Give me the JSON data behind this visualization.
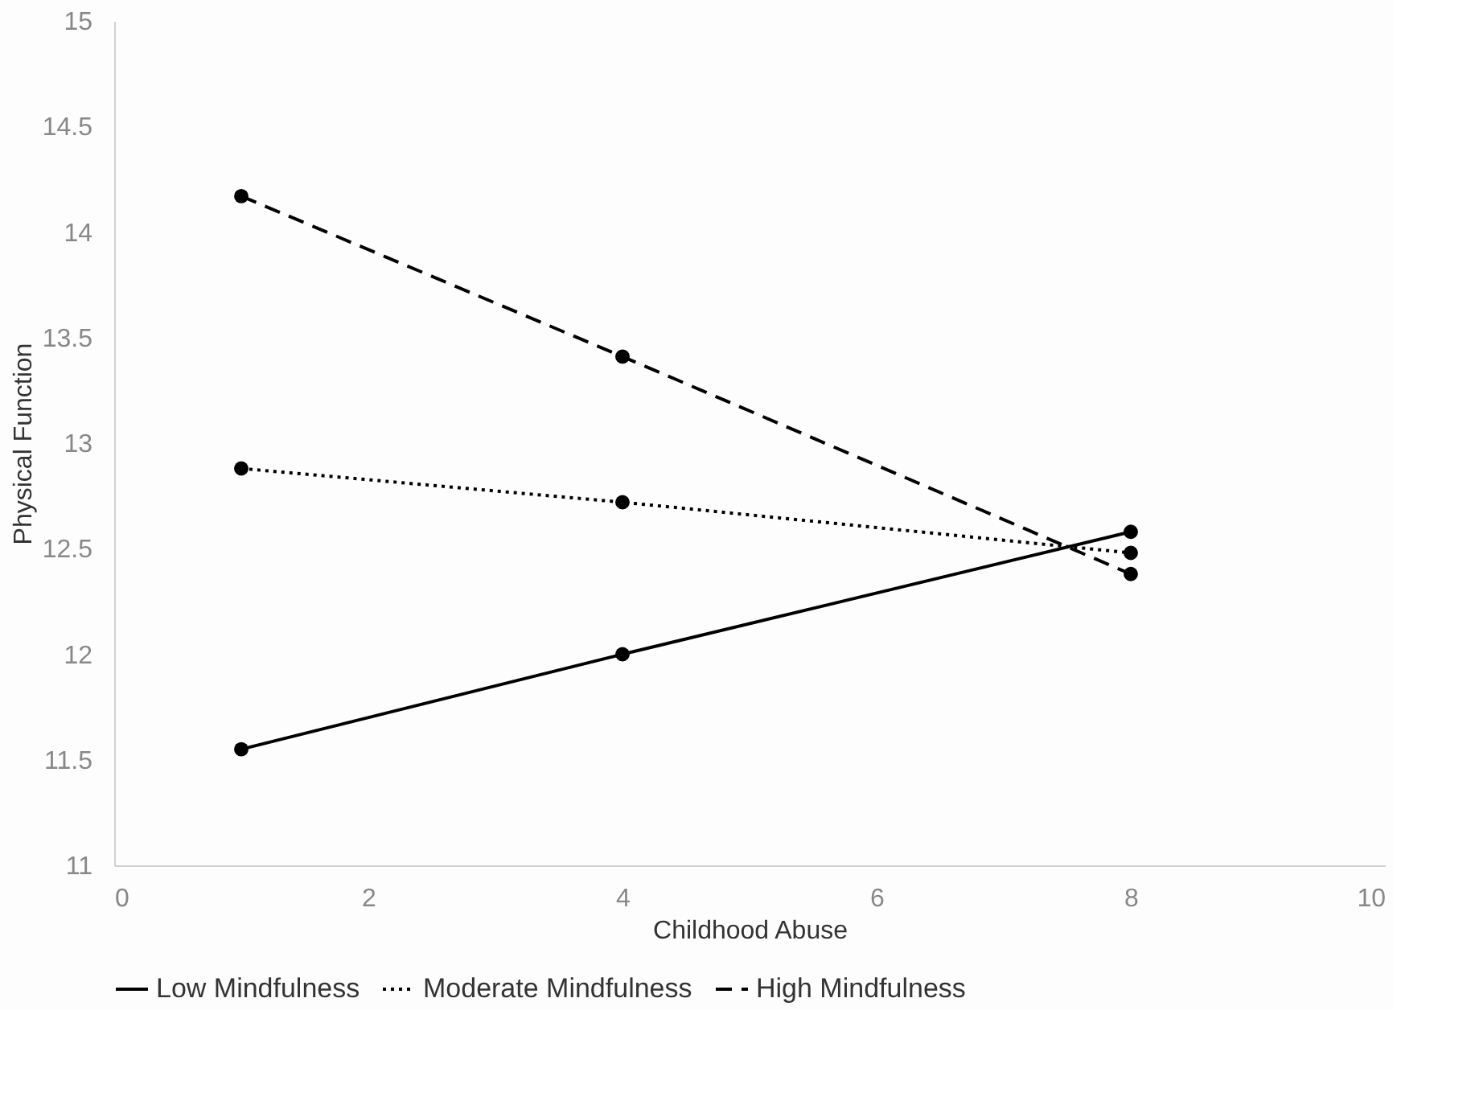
{
  "chart_data": {
    "type": "line",
    "xlabel": "Childhood Abuse",
    "ylabel": "Physical Function",
    "x": [
      1,
      4,
      8
    ],
    "series": [
      {
        "name": "Low Mindfulness",
        "color": "#000000",
        "line_style": "solid",
        "values": [
          11.55,
          12.0,
          12.58
        ]
      },
      {
        "name": "Moderate Mindfulness",
        "color": "#000000",
        "line_style": "dotted",
        "values": [
          12.88,
          12.72,
          12.48
        ]
      },
      {
        "name": "High Mindfulness",
        "color": "#000000",
        "line_style": "dashed",
        "values": [
          14.17,
          13.41,
          12.38
        ]
      }
    ],
    "xlim": [
      0,
      10
    ],
    "xticks": [
      0,
      2,
      4,
      6,
      8,
      10
    ],
    "ylim": [
      11,
      15
    ],
    "yticks": [
      11,
      11.5,
      12,
      12.5,
      13,
      13.5,
      14,
      14.5,
      15
    ],
    "grid": false,
    "legend": "bottom",
    "marker": "circle"
  }
}
